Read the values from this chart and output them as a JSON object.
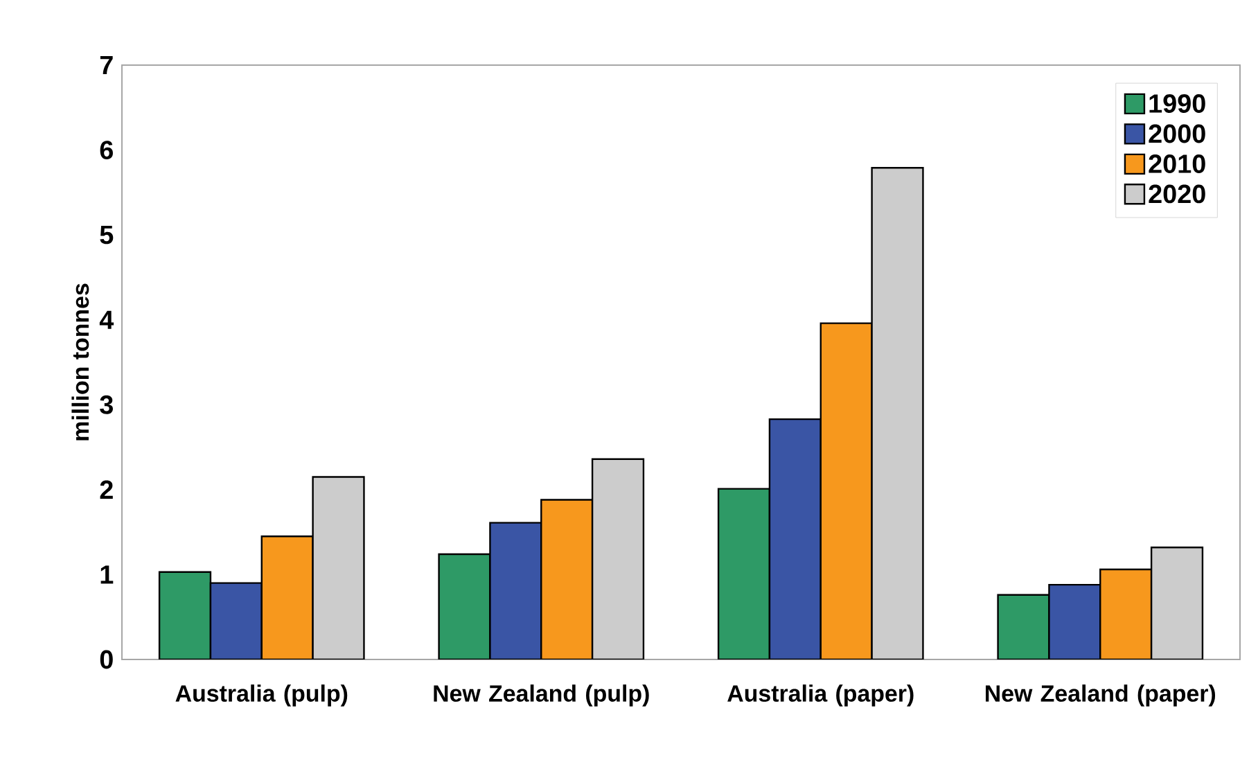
{
  "chart_data": {
    "type": "bar",
    "ylabel": "million tonnes",
    "categories": [
      "Australia (pulp)",
      "New Zealand (pulp)",
      "Australia (paper)",
      "New Zealand (paper)"
    ],
    "series": [
      {
        "name": "1990",
        "color": "#2e9a66",
        "values": [
          1.03,
          1.24,
          2.01,
          0.76
        ]
      },
      {
        "name": "2000",
        "color": "#3a55a5",
        "values": [
          0.9,
          1.61,
          2.83,
          0.88
        ]
      },
      {
        "name": "2010",
        "color": "#f7981d",
        "values": [
          1.45,
          1.88,
          3.96,
          1.06
        ]
      },
      {
        "name": "2020",
        "color": "#cccccc",
        "values": [
          2.15,
          2.36,
          5.79,
          1.32
        ]
      }
    ],
    "ylim": [
      0,
      7
    ],
    "yticks": [
      0,
      1,
      2,
      3,
      4,
      5,
      6,
      7
    ],
    "legend": "top right",
    "grid": false
  }
}
